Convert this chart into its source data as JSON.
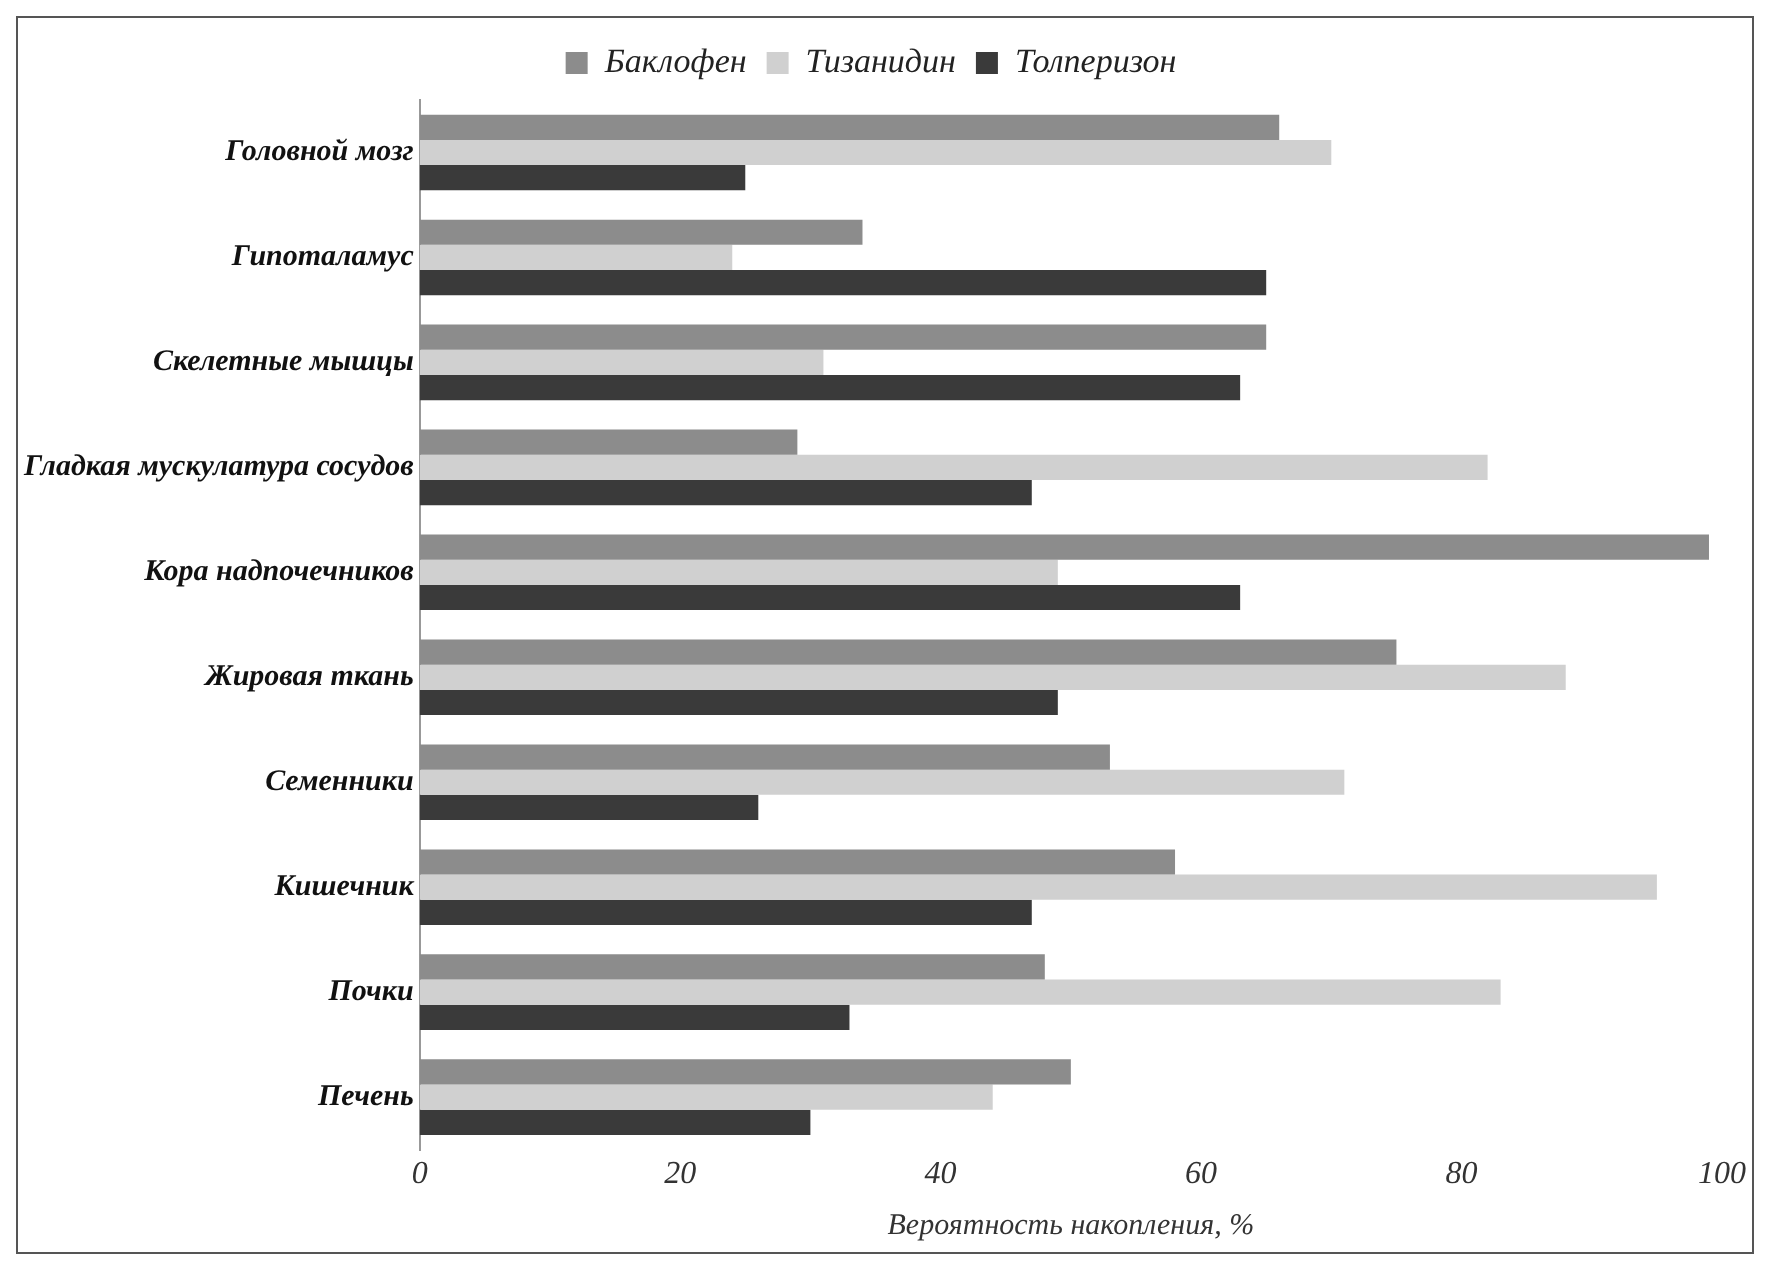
{
  "chart_data": {
    "type": "bar",
    "orientation": "horizontal",
    "xlabel": "Вероятность накопления, %",
    "categories": [
      "Головной мозг",
      "Гипоталамус",
      "Скелетные мышцы",
      "Гладкая мускулатура сосудов",
      "Кора надпочечников",
      "Жировая ткань",
      "Семенники",
      "Кишечник",
      "Почки",
      "Печень"
    ],
    "series": [
      {
        "name": "Баклофен",
        "color": "#8c8c8c",
        "values": [
          66,
          34,
          65,
          29,
          99,
          75,
          53,
          58,
          48,
          50
        ]
      },
      {
        "name": "Тизанидин",
        "color": "#d0d0d0",
        "values": [
          70,
          24,
          31,
          82,
          49,
          88,
          71,
          95,
          83,
          44
        ]
      },
      {
        "name": "Толперизон",
        "color": "#3a3a3a",
        "values": [
          25,
          65,
          63,
          47,
          63,
          49,
          26,
          47,
          33,
          30
        ]
      }
    ],
    "xlim": [
      0,
      100
    ],
    "xticks": [
      0,
      20,
      40,
      60,
      80,
      100
    ],
    "grid": false,
    "legend": "top"
  }
}
